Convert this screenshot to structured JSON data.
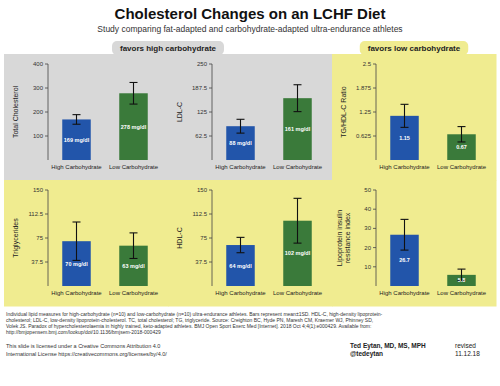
{
  "title": "Cholesterol Changes on an LCHF Diet",
  "subtitle": "Study comparing fat-adapted and carbohydrate-adapted ultra-endurance athletes",
  "annotations": [
    "Individual lipid measures for high-carbohydrate (n=10) and low-carbohydrate (n=10) ultra-endurance athletes. Bars represent mean±1SD. HDL-C, high-density lipoprotein-\ncholesterol; LDL-C, low-density lipoprotein-cholesterol. TC, total cholesterol; TG, triglyceride. Source: Creighton BC, Hyde PN, Maresh CM, Kraemer WJ, Phinney SD,\nVolek JS. Paradox of hypercholesterolaemia in highly trained, keto-adapted athletes. BMJ Open Sport Exerc Med [Internet]. 2018 Oct 4;4(1):e000429. Available from:\nhttp://bmjopensem.bmj.com/lookup/doi/10.1136/bmjsem-2018-000429",
    "This slide is licensed under a Creative Commons Attribution 4.0\nInternational License https://creativecommons.org/licenses/by/4.0/",
    "Ted Eytan, MD, MS, MPH\n@tedeytan",
    "revised\n11.12.18"
  ],
  "chart_data": [
    {
      "type": "bar",
      "ylabel": "Total Cholesterol",
      "categories": [
        "High Carbohydrate",
        "Low Carbohydrate"
      ],
      "values": [
        169,
        278
      ],
      "errors": [
        20,
        45
      ],
      "value_labels": [
        "169 mg/dl",
        "278 mg/dl"
      ],
      "data_labels": true,
      "colors": [
        "#2255aa",
        "#3a7a3a"
      ],
      "ylim": [
        0,
        400
      ],
      "yticks": [
        100,
        200,
        300,
        400
      ],
      "annotation": {
        "text": "favors high carbohydrate",
        "color": "#d8d8d8"
      }
    },
    {
      "type": "bar",
      "ylabel": "LDL-C",
      "categories": [
        "High Carbohydrate",
        "Low Carbohydrate"
      ],
      "values": [
        88,
        161
      ],
      "errors": [
        18,
        35
      ],
      "value_labels": [
        "88 mg/dl",
        "161 mg/dl"
      ],
      "data_labels": true,
      "colors": [
        "#2255aa",
        "#3a7a3a"
      ],
      "ylim": [
        0,
        250
      ],
      "yticks": [
        62.5,
        125,
        187.5,
        250
      ],
      "annotation": {
        "text": "favors high carbohydrate",
        "color": "#d8d8d8"
      }
    },
    {
      "type": "bar",
      "ylabel": "TG/HDL-C Ratio",
      "categories": [
        "High Carbohydrate",
        "Low Carbohydrate"
      ],
      "values": [
        1.15,
        0.67
      ],
      "errors": [
        0.3,
        0.2
      ],
      "value_labels": [
        "1.15",
        "0.67"
      ],
      "data_labels": true,
      "colors": [
        "#2255aa",
        "#3a7a3a"
      ],
      "ylim": [
        0,
        2.5
      ],
      "yticks": [
        0.625,
        1.25,
        1.875,
        2.5
      ],
      "annotation": {
        "text": "favors low carbohydrate",
        "color": "#f0ec90"
      }
    },
    {
      "type": "bar",
      "ylabel": "Triglycerides",
      "categories": [
        "High Carbohydrate",
        "Low Carbohydrate"
      ],
      "values": [
        70,
        63
      ],
      "errors": [
        30,
        20
      ],
      "value_labels": [
        "70 mg/dl",
        "63 mg/dl"
      ],
      "data_labels": true,
      "colors": [
        "#2255aa",
        "#3a7a3a"
      ],
      "ylim": [
        0,
        150
      ],
      "yticks": [
        37.5,
        75,
        112.5,
        150
      ],
      "annotation": {
        "text": "favors low carbohydrate",
        "color": "#f0ec90"
      }
    },
    {
      "type": "bar",
      "ylabel": "HDL-C",
      "categories": [
        "High Carbohydrate",
        "Low Carbohydrate"
      ],
      "values": [
        64,
        102
      ],
      "errors": [
        12,
        35
      ],
      "value_labels": [
        "64 mg/dl",
        "102 mg/dl"
      ],
      "data_labels": true,
      "colors": [
        "#2255aa",
        "#3a7a3a"
      ],
      "ylim": [
        0,
        150
      ],
      "yticks": [
        37.5,
        75,
        112.5,
        150
      ],
      "annotation": {
        "text": "favors low carbohydrate",
        "color": "#f0ec90"
      }
    },
    {
      "type": "bar",
      "ylabel": "Lipoprotein insulin\nresistance index",
      "categories": [
        "High Carbohydrate",
        "Low Carbohydrate"
      ],
      "values": [
        26.7,
        5.8
      ],
      "errors": [
        8,
        3
      ],
      "value_labels": [
        "26.7",
        "5.8"
      ],
      "data_labels": true,
      "colors": [
        "#2255aa",
        "#3a7a3a"
      ],
      "ylim": [
        0,
        50
      ],
      "yticks": [
        10,
        20,
        30,
        40,
        50
      ],
      "annotation": {
        "text": "favors low carbohydrate",
        "color": "#f0ec90"
      }
    }
  ]
}
